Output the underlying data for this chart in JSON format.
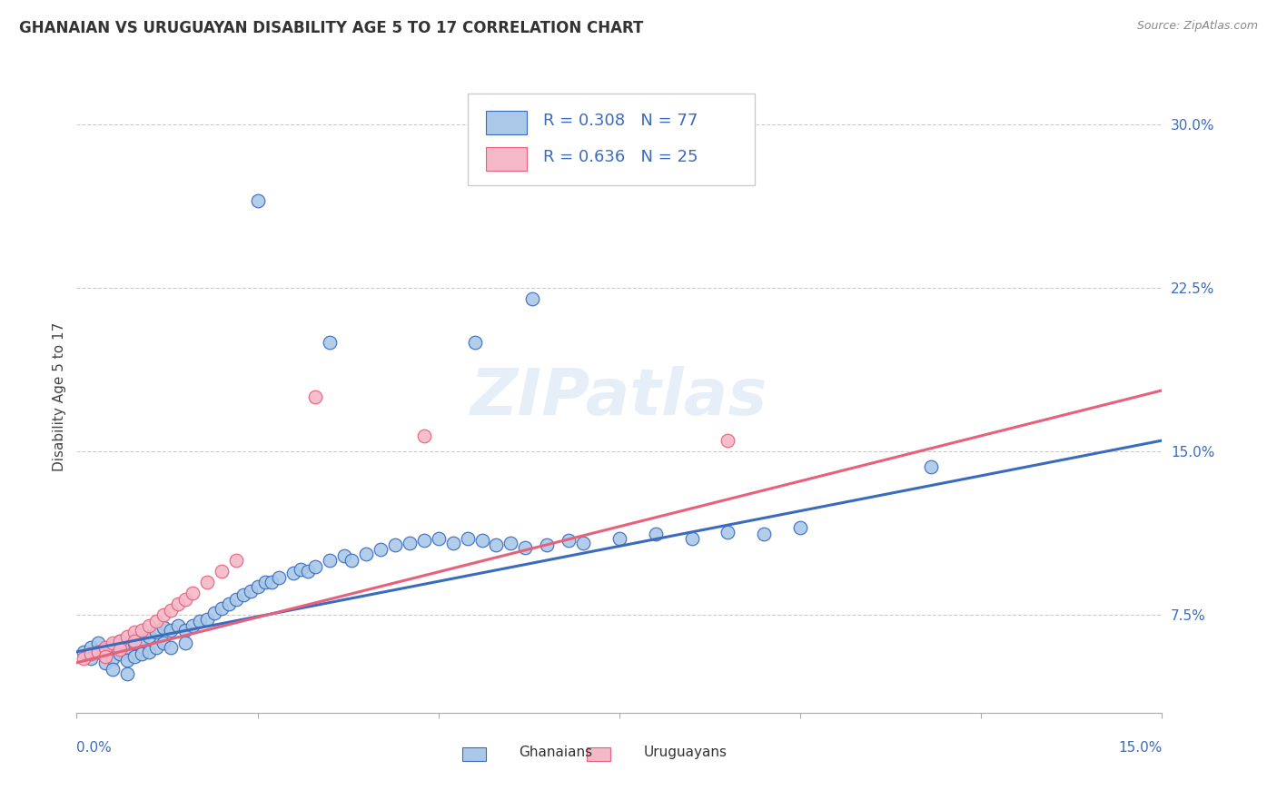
{
  "title": "GHANAIAN VS URUGUAYAN DISABILITY AGE 5 TO 17 CORRELATION CHART",
  "source": "Source: ZipAtlas.com",
  "ylabel": "Disability Age 5 to 17",
  "xlim": [
    0.0,
    0.15
  ],
  "ylim": [
    0.03,
    0.32
  ],
  "yticks": [
    0.075,
    0.15,
    0.225,
    0.3
  ],
  "ytick_labels": [
    "7.5%",
    "15.0%",
    "22.5%",
    "30.0%"
  ],
  "legend_r1": "R = 0.308",
  "legend_n1": "N = 77",
  "legend_r2": "R = 0.636",
  "legend_n2": "N = 25",
  "ghanaians_color": "#aac9e8",
  "uruguayans_color": "#f5b8c8",
  "ghanaians_line_color": "#3a6bbf",
  "uruguayans_line_color": "#e8607a",
  "background_color": "#ffffff",
  "title_fontsize": 12,
  "axis_label_fontsize": 11,
  "tick_fontsize": 11,
  "legend_fontsize": 13,
  "gh_x": [
    0.001,
    0.002,
    0.002,
    0.003,
    0.003,
    0.004,
    0.004,
    0.004,
    0.005,
    0.005,
    0.005,
    0.006,
    0.006,
    0.007,
    0.007,
    0.007,
    0.008,
    0.008,
    0.009,
    0.009,
    0.01,
    0.01,
    0.011,
    0.011,
    0.012,
    0.012,
    0.013,
    0.013,
    0.014,
    0.015,
    0.015,
    0.016,
    0.017,
    0.018,
    0.019,
    0.02,
    0.021,
    0.022,
    0.023,
    0.024,
    0.025,
    0.026,
    0.027,
    0.028,
    0.03,
    0.031,
    0.032,
    0.033,
    0.035,
    0.037,
    0.038,
    0.04,
    0.042,
    0.044,
    0.046,
    0.048,
    0.05,
    0.052,
    0.054,
    0.056,
    0.058,
    0.06,
    0.062,
    0.065,
    0.068,
    0.07,
    0.075,
    0.08,
    0.085,
    0.09,
    0.095,
    0.1,
    0.118,
    0.025,
    0.035,
    0.055,
    0.063
  ],
  "gh_y": [
    0.058,
    0.06,
    0.055,
    0.062,
    0.058,
    0.059,
    0.056,
    0.053,
    0.061,
    0.055,
    0.05,
    0.063,
    0.057,
    0.06,
    0.054,
    0.048,
    0.062,
    0.056,
    0.063,
    0.057,
    0.065,
    0.058,
    0.067,
    0.06,
    0.069,
    0.062,
    0.068,
    0.06,
    0.07,
    0.068,
    0.062,
    0.07,
    0.072,
    0.073,
    0.076,
    0.078,
    0.08,
    0.082,
    0.084,
    0.086,
    0.088,
    0.09,
    0.09,
    0.092,
    0.094,
    0.096,
    0.095,
    0.097,
    0.1,
    0.102,
    0.1,
    0.103,
    0.105,
    0.107,
    0.108,
    0.109,
    0.11,
    0.108,
    0.11,
    0.109,
    0.107,
    0.108,
    0.106,
    0.107,
    0.109,
    0.108,
    0.11,
    0.112,
    0.11,
    0.113,
    0.112,
    0.115,
    0.143,
    0.265,
    0.2,
    0.2,
    0.22
  ],
  "ur_x": [
    0.001,
    0.002,
    0.003,
    0.004,
    0.004,
    0.005,
    0.006,
    0.006,
    0.007,
    0.008,
    0.008,
    0.009,
    0.01,
    0.011,
    0.012,
    0.013,
    0.014,
    0.015,
    0.016,
    0.018,
    0.02,
    0.022,
    0.048,
    0.09,
    0.033
  ],
  "ur_y": [
    0.055,
    0.057,
    0.058,
    0.06,
    0.056,
    0.062,
    0.063,
    0.059,
    0.065,
    0.067,
    0.063,
    0.068,
    0.07,
    0.072,
    0.075,
    0.077,
    0.08,
    0.082,
    0.085,
    0.09,
    0.095,
    0.1,
    0.157,
    0.155,
    0.175
  ],
  "gh_line_x": [
    0.0,
    0.15
  ],
  "gh_line_y": [
    0.058,
    0.155
  ],
  "ur_line_x": [
    0.0,
    0.15
  ],
  "ur_line_y": [
    0.053,
    0.178
  ]
}
